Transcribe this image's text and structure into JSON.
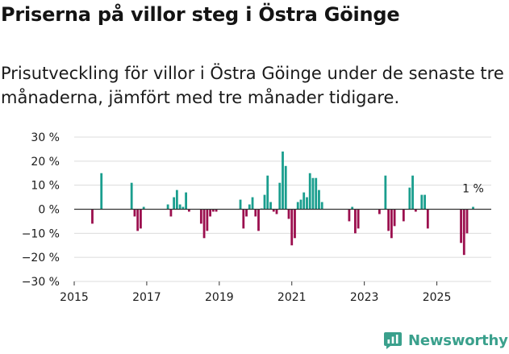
{
  "header": {
    "title": "Priserna på villor steg i Östra Göinge",
    "subtitle": "Prisutveckling för villor i Östra Göinge under de senaste tre månaderna, jämfört med tre månader tidigare."
  },
  "brand": {
    "name": "Newsworthy"
  },
  "colors": {
    "positive": "#1a9e8e",
    "negative": "#9b0f4e",
    "grid": "#dcdcdc",
    "zero": "#333333"
  },
  "chart_data": {
    "type": "bar",
    "title": "Priserna på villor steg i Östra Göinge",
    "xlabel": "",
    "ylabel": "",
    "ylim": [
      -30,
      30
    ],
    "xlim": [
      2015.0,
      2026.5
    ],
    "y_ticks": [
      30,
      20,
      10,
      0,
      -10,
      -20,
      -30
    ],
    "y_tick_labels": [
      "30 %",
      "20 %",
      "10 %",
      "0 %",
      "−10 %",
      "−20 %",
      "−30 %"
    ],
    "x_ticks": [
      2015,
      2017,
      2019,
      2021,
      2023,
      2025
    ],
    "x_tick_labels": [
      "2015",
      "2017",
      "2019",
      "2021",
      "2023",
      "2025"
    ],
    "annotation": {
      "text": "1 %",
      "x": 2026.0,
      "value": 1
    },
    "series": [
      {
        "name": "Prisutveckling villor (%)",
        "x": [
          2015.5,
          2015.75,
          2016.583,
          2016.667,
          2016.75,
          2016.833,
          2016.917,
          2017.583,
          2017.667,
          2017.75,
          2017.833,
          2017.917,
          2018.0,
          2018.083,
          2018.167,
          2018.5,
          2018.583,
          2018.667,
          2018.75,
          2018.833,
          2018.917,
          2019.583,
          2019.667,
          2019.75,
          2019.833,
          2019.917,
          2020.0,
          2020.083,
          2020.167,
          2020.25,
          2020.333,
          2020.417,
          2020.5,
          2020.583,
          2020.667,
          2020.75,
          2020.833,
          2020.917,
          2021.0,
          2021.083,
          2021.167,
          2021.25,
          2021.333,
          2021.417,
          2021.5,
          2021.583,
          2021.667,
          2021.75,
          2021.833,
          2022.583,
          2022.667,
          2022.75,
          2022.833,
          2023.417,
          2023.583,
          2023.667,
          2023.75,
          2023.833,
          2024.083,
          2024.25,
          2024.333,
          2024.417,
          2024.583,
          2024.667,
          2024.75,
          2025.667,
          2025.75,
          2025.833,
          2026.0
        ],
        "values": [
          -6,
          15,
          11,
          -3,
          -9,
          -8,
          1,
          2,
          -3,
          5,
          8,
          2,
          1,
          7,
          -1,
          -6,
          -12,
          -9,
          -3,
          -1,
          -1,
          4,
          -8,
          -3,
          2,
          5,
          -3,
          -9,
          0,
          6,
          14,
          3,
          -1,
          -2,
          11,
          24,
          18,
          -4,
          -15,
          -12,
          3,
          4,
          7,
          5,
          15,
          13,
          13,
          8,
          3,
          -5,
          1,
          -10,
          -8,
          -2,
          14,
          -9,
          -12,
          -7,
          -5,
          9,
          14,
          -1,
          6,
          6,
          -8,
          -14,
          -19,
          -10,
          1
        ]
      }
    ]
  }
}
